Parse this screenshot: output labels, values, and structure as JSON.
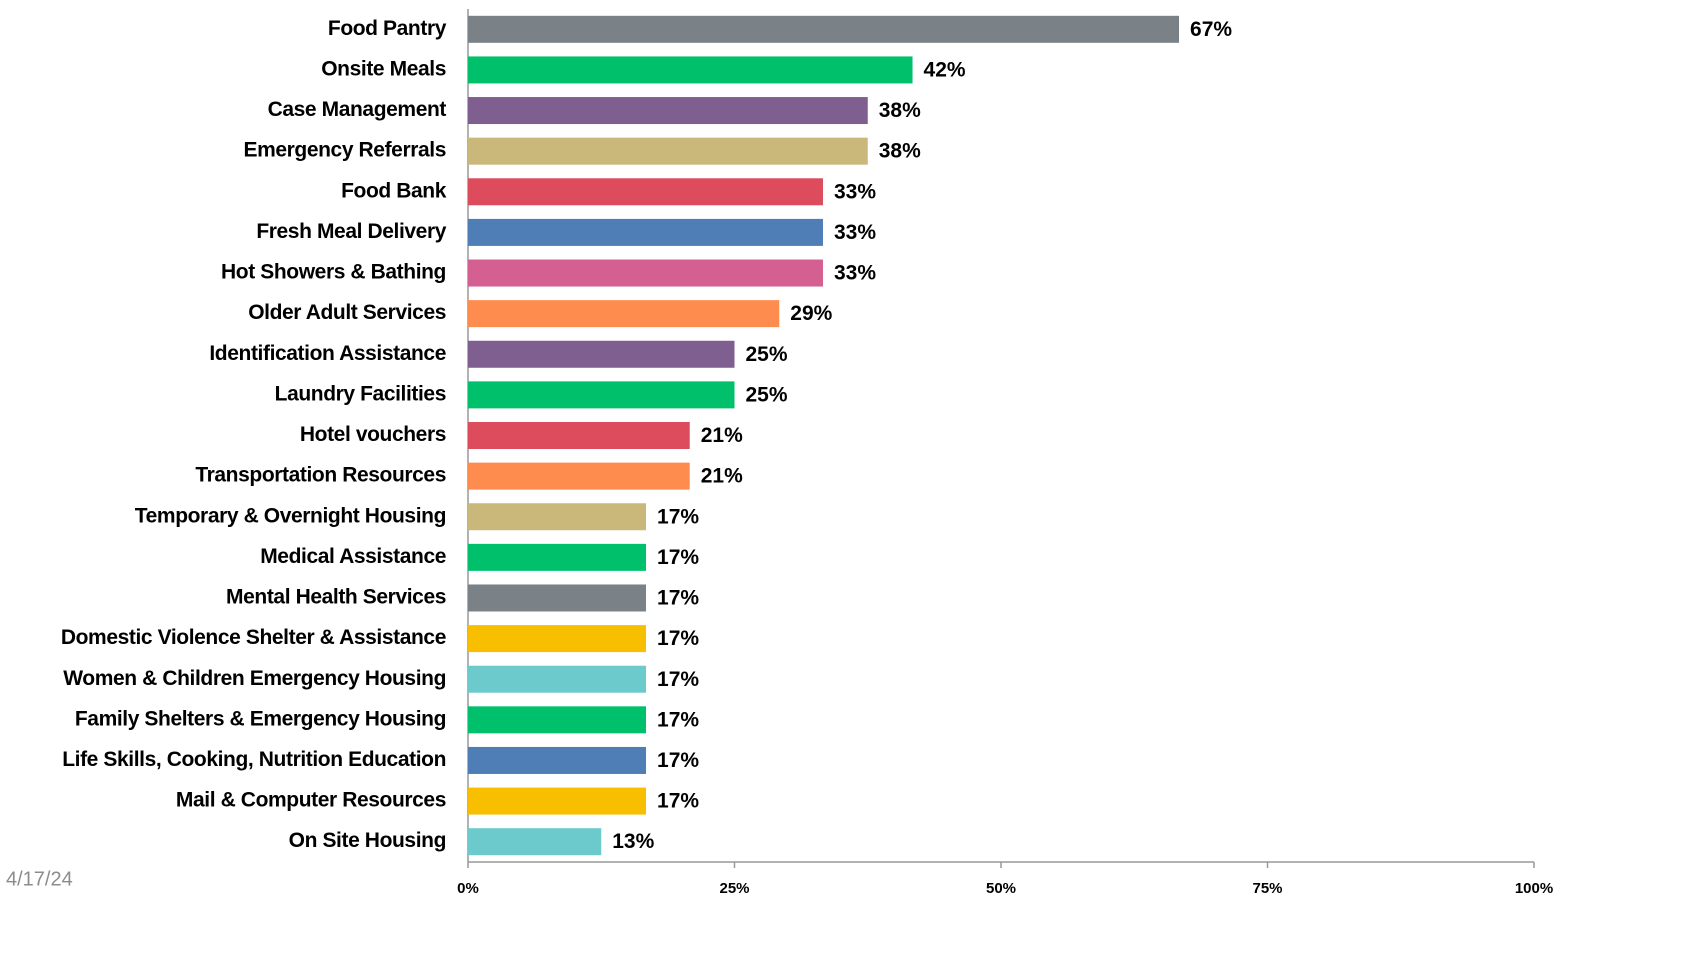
{
  "chart_data": {
    "type": "barh",
    "categories": [
      "Food Pantry",
      "Onsite Meals",
      "Case Management",
      "Emergency Referrals",
      "Food Bank",
      "Fresh Meal Delivery",
      "Hot Showers & Bathing",
      "Older Adult Services",
      "Identification Assistance",
      "Laundry Facilities",
      "Hotel vouchers",
      "Transportation Resources",
      "Temporary & Overnight Housing",
      "Medical Assistance",
      "Mental Health Services",
      "Domestic Violence Shelter & Assistance",
      "Women & Children Emergency Housing",
      "Family Shelters & Emergency Housing",
      "Life Skills, Cooking, Nutrition Education",
      "Mail & Computer Resources",
      "On Site Housing"
    ],
    "values": [
      66.7,
      41.7,
      37.5,
      37.5,
      33.3,
      33.3,
      33.3,
      29.2,
      25,
      25,
      20.8,
      20.8,
      16.7,
      16.7,
      16.7,
      16.7,
      16.7,
      16.7,
      16.7,
      16.7,
      12.5
    ],
    "value_labels": [
      "67%",
      "42%",
      "38%",
      "38%",
      "33%",
      "33%",
      "33%",
      "29%",
      "25%",
      "25%",
      "21%",
      "21%",
      "17%",
      "17%",
      "17%",
      "17%",
      "17%",
      "17%",
      "17%",
      "17%",
      "13%"
    ],
    "colors": [
      "#7a8288",
      "#00c06b",
      "#7e5f8f",
      "#c9b87a",
      "#dc4c5c",
      "#4f7db5",
      "#d45f91",
      "#ff8c4f",
      "#7e5f8f",
      "#00c06b",
      "#dc4c5c",
      "#ff8c4f",
      "#c9b87a",
      "#00c06b",
      "#7a8288",
      "#f8bf00",
      "#6cc9cc",
      "#00c06b",
      "#4f7db5",
      "#f8bf00",
      "#6cc9cc"
    ],
    "xlim": [
      0,
      100
    ],
    "xticks": [
      {
        "value": 0,
        "label": "0%"
      },
      {
        "value": 25,
        "label": "25%"
      },
      {
        "value": 50,
        "label": "50%"
      },
      {
        "value": 75,
        "label": "75%"
      },
      {
        "value": 100,
        "label": "100%"
      }
    ],
    "annotations": [
      "4/17/24"
    ]
  }
}
